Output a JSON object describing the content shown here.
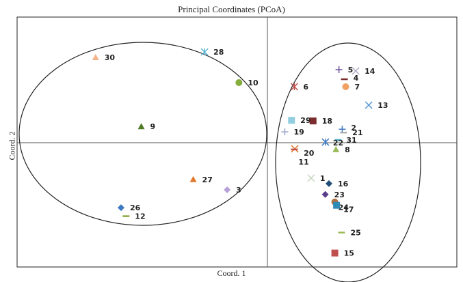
{
  "chart_data": {
    "type": "scatter",
    "title": "Principal Coordinates (PCoA)",
    "xlabel": "Coord. 1",
    "ylabel": "Coord. 2",
    "xlim": [
      -1.0,
      1.0
    ],
    "ylim": [
      -1.0,
      1.0
    ],
    "grid": false,
    "points": [
      {
        "label": "30",
        "x": -0.79,
        "y": 0.683,
        "marker": "triangle",
        "color": "#f5b48a"
      },
      {
        "label": "28",
        "x": -0.289,
        "y": 0.726,
        "marker": "asterisk",
        "color": "#5bb7d4"
      },
      {
        "label": "10",
        "x": -0.131,
        "y": 0.481,
        "marker": "circle",
        "color": "#84ad3c"
      },
      {
        "label": "9",
        "x": -0.58,
        "y": 0.13,
        "marker": "triangle",
        "color": "#4f7a28"
      },
      {
        "label": "27",
        "x": -0.341,
        "y": -0.294,
        "marker": "triangle",
        "color": "#e07a2c"
      },
      {
        "label": "3",
        "x": -0.185,
        "y": -0.377,
        "marker": "diamond",
        "color": "#b8a0d8"
      },
      {
        "label": "26",
        "x": -0.673,
        "y": -0.52,
        "marker": "diamond",
        "color": "#3d79c1"
      },
      {
        "label": "12",
        "x": -0.65,
        "y": -0.588,
        "marker": "dash",
        "color": "#8aa83c"
      },
      {
        "label": "5",
        "x": 0.329,
        "y": 0.585,
        "marker": "plus",
        "color": "#6b4fa0"
      },
      {
        "label": "14",
        "x": 0.406,
        "y": 0.574,
        "marker": "x",
        "color": "#b0b0c8"
      },
      {
        "label": "4",
        "x": 0.354,
        "y": 0.508,
        "marker": "dash",
        "color": "#7a2b2b"
      },
      {
        "label": "7",
        "x": 0.36,
        "y": 0.448,
        "marker": "circle",
        "color": "#f0a060"
      },
      {
        "label": "6",
        "x": 0.124,
        "y": 0.448,
        "marker": "asterisk",
        "color": "#c0504d"
      },
      {
        "label": "13",
        "x": 0.466,
        "y": 0.301,
        "marker": "x",
        "color": "#5b9bd5"
      },
      {
        "label": "29",
        "x": 0.111,
        "y": 0.179,
        "marker": "square",
        "color": "#92cde0"
      },
      {
        "label": "18",
        "x": 0.21,
        "y": 0.174,
        "marker": "square",
        "color": "#7b2c2c"
      },
      {
        "label": "19",
        "x": 0.08,
        "y": 0.087,
        "marker": "plus",
        "color": "#9aa0c8"
      },
      {
        "label": "2",
        "x": 0.344,
        "y": 0.108,
        "marker": "plus",
        "color": "#3d79c1"
      },
      {
        "label": "21",
        "x": 0.35,
        "y": 0.081,
        "marker": "dash",
        "color": "#b0b0b0"
      },
      {
        "label": "31",
        "x": 0.325,
        "y": 0.022,
        "marker": "dash",
        "color": "#4bacc6"
      },
      {
        "label": "22",
        "x": 0.267,
        "y": 0.005,
        "marker": "asterisk",
        "color": "#3d79c1"
      },
      {
        "label": "20",
        "x": 0.126,
        "y": -0.049,
        "marker": "x",
        "color": "#e07a2c"
      },
      {
        "label": "11",
        "x": 0.124,
        "y": -0.054,
        "marker": "dash",
        "color": "#c0504d"
      },
      {
        "label": "8",
        "x": 0.315,
        "y": -0.054,
        "marker": "triangle",
        "color": "#9bbb59"
      },
      {
        "label": "1",
        "x": 0.201,
        "y": -0.283,
        "marker": "x",
        "color": "#c8d8c0"
      },
      {
        "label": "16",
        "x": 0.283,
        "y": -0.327,
        "marker": "diamond",
        "color": "#1f4e79"
      },
      {
        "label": "23",
        "x": 0.266,
        "y": -0.414,
        "marker": "diamond",
        "color": "#5b3f8c"
      },
      {
        "label": "24",
        "x": 0.31,
        "y": -0.474,
        "marker": "circle",
        "color": "#b07040"
      },
      {
        "label": "17",
        "x": 0.318,
        "y": -0.501,
        "marker": "square",
        "color": "#2e8bb5"
      },
      {
        "label": "25",
        "x": 0.341,
        "y": -0.719,
        "marker": "dash",
        "color": "#9bbb59"
      },
      {
        "label": "15",
        "x": 0.31,
        "y": -0.883,
        "marker": "square",
        "color": "#c0504d"
      }
    ],
    "annotations": [
      "ellipse around points 30, 28, 10, 9, 27, 3, 26, 12",
      "ellipse around points 1-8, 11, 13-25, 29, 31"
    ]
  }
}
